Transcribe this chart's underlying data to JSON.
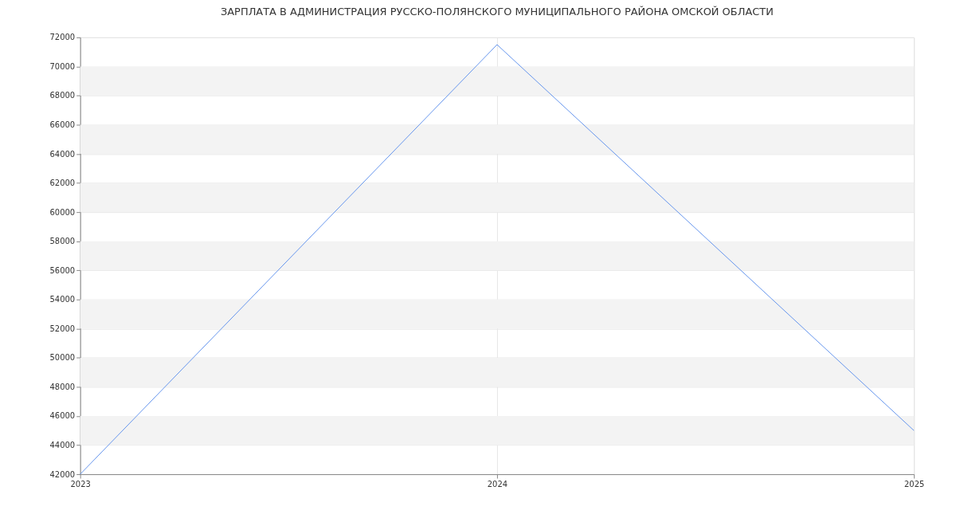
{
  "chart_data": {
    "type": "line",
    "title": "ЗАРПЛАТА В АДМИНИСТРАЦИЯ РУССКО-ПОЛЯНСКОГО МУНИЦИПАЛЬНОГО РАЙОНА ОМСКОЙ ОБЛАСТИ",
    "x": [
      2023,
      2024,
      2025
    ],
    "series": [
      {
        "color": "#6495ed",
        "values": [
          42000,
          71500,
          45000
        ]
      }
    ],
    "xlim": [
      2023,
      2025
    ],
    "xticks": [
      2023,
      2024,
      2025
    ],
    "ylim": [
      42000,
      72000
    ],
    "yticks": [
      42000,
      44000,
      46000,
      48000,
      50000,
      52000,
      54000,
      56000,
      58000,
      60000,
      62000,
      64000,
      66000,
      68000,
      70000,
      72000
    ],
    "bands": [
      {
        "axis": "y",
        "from": 44000,
        "to": 46000,
        "color": "#f3f3f3"
      },
      {
        "axis": "y",
        "from": 48000,
        "to": 50000,
        "color": "#f3f3f3"
      },
      {
        "axis": "y",
        "from": 52000,
        "to": 54000,
        "color": "#f3f3f3"
      },
      {
        "axis": "y",
        "from": 56000,
        "to": 58000,
        "color": "#f3f3f3"
      },
      {
        "axis": "y",
        "from": 60000,
        "to": 62000,
        "color": "#f3f3f3"
      },
      {
        "axis": "y",
        "from": 64000,
        "to": 66000,
        "color": "#f3f3f3"
      },
      {
        "axis": "y",
        "from": 68000,
        "to": 70000,
        "color": "#f3f3f3"
      }
    ],
    "grid": true,
    "marker": "none",
    "line_style": "solid"
  }
}
